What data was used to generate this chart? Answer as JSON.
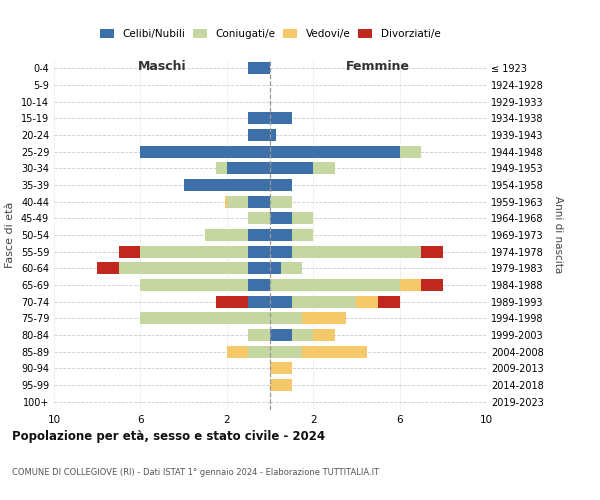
{
  "age_groups": [
    "0-4",
    "5-9",
    "10-14",
    "15-19",
    "20-24",
    "25-29",
    "30-34",
    "35-39",
    "40-44",
    "45-49",
    "50-54",
    "55-59",
    "60-64",
    "65-69",
    "70-74",
    "75-79",
    "80-84",
    "85-89",
    "90-94",
    "95-99",
    "100+"
  ],
  "birth_years": [
    "2019-2023",
    "2014-2018",
    "2009-2013",
    "2004-2008",
    "1999-2003",
    "1994-1998",
    "1989-1993",
    "1984-1988",
    "1979-1983",
    "1974-1978",
    "1969-1973",
    "1964-1968",
    "1959-1963",
    "1954-1958",
    "1949-1953",
    "1944-1948",
    "1939-1943",
    "1934-1938",
    "1929-1933",
    "1924-1928",
    "≤ 1923"
  ],
  "colors": {
    "celibi": "#3d6fa8",
    "coniugati": "#c5d6a0",
    "vedovi": "#f5c96a",
    "divorziati": "#c0271e"
  },
  "maschi": {
    "celibi": [
      1,
      0,
      0,
      1,
      1,
      6,
      2,
      4,
      1,
      0,
      1,
      1,
      1,
      1,
      1,
      0,
      0,
      0,
      0,
      0,
      0
    ],
    "coniugati": [
      0,
      0,
      0,
      0,
      0,
      0,
      0.5,
      0,
      1,
      1,
      2,
      5,
      6,
      5,
      0,
      6,
      1,
      1,
      0,
      0,
      0
    ],
    "vedovi": [
      0,
      0,
      0,
      0,
      0,
      0,
      0,
      0,
      0.1,
      0,
      0,
      0,
      0,
      0,
      0,
      0,
      0,
      1,
      0,
      0,
      0
    ],
    "divorziati": [
      0,
      0,
      0,
      0,
      0,
      0,
      0,
      0,
      0,
      0,
      0,
      1,
      1,
      0,
      1.5,
      0,
      0,
      0,
      0,
      0,
      0
    ]
  },
  "femmine": {
    "celibi": [
      0,
      0,
      0,
      1,
      0.3,
      6,
      2,
      1,
      0,
      1,
      1,
      1,
      0.5,
      0,
      1,
      0,
      1,
      0,
      0,
      0,
      0
    ],
    "coniugati": [
      0,
      0,
      0,
      0,
      0,
      1,
      1,
      0,
      1,
      1,
      1,
      6,
      1,
      6,
      3,
      1.5,
      1,
      1.5,
      0,
      0,
      0
    ],
    "vedovi": [
      0,
      0,
      0,
      0,
      0,
      0,
      0,
      0,
      0,
      0,
      0,
      0,
      0,
      1,
      1,
      2,
      1,
      3,
      1,
      1,
      0
    ],
    "divorziati": [
      0,
      0,
      0,
      0,
      0,
      0,
      0,
      0,
      0,
      0,
      0,
      1,
      0,
      1,
      1,
      0,
      0,
      0,
      0,
      0,
      0
    ]
  },
  "xlim": 10,
  "title": "Popolazione per età, sesso e stato civile - 2024",
  "subtitle": "COMUNE DI COLLEGIOVE (RI) - Dati ISTAT 1° gennaio 2024 - Elaborazione TUTTITALIA.IT",
  "xlabel_left": "Maschi",
  "xlabel_right": "Femmine",
  "ylabel": "Fasce di età",
  "ylabel_right": "Anni di nascita",
  "legend_labels": [
    "Celibi/Nubili",
    "Coniugati/e",
    "Vedovi/e",
    "Divorziati/e"
  ],
  "bg_color": "#ffffff",
  "grid_color": "#cccccc",
  "spine_color": "#cccccc"
}
